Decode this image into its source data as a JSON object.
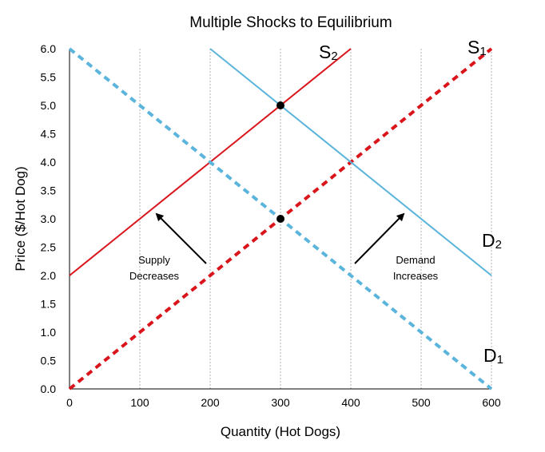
{
  "chart_data": {
    "type": "line",
    "title": "Multiple Shocks to Equilibrium",
    "xlabel": "Quantity (Hot Dogs)",
    "ylabel": "Price ($/Hot Dog)",
    "xlim": [
      0,
      600
    ],
    "ylim": [
      0,
      6
    ],
    "x_ticks": [
      "0",
      "100",
      "200",
      "300",
      "400",
      "500",
      "600"
    ],
    "y_ticks": [
      "0.0",
      "0.5",
      "1.0",
      "1.5",
      "2.0",
      "2.5",
      "3.0",
      "3.5",
      "4.0",
      "4.5",
      "5.0",
      "5.5",
      "6.0"
    ],
    "grid": "vertical dotted",
    "colors": {
      "supply": "#d9141b",
      "demand": "#5ab4dc",
      "grid": "#b3b3b3",
      "axis": "#000000"
    },
    "series": [
      {
        "label_main": "S",
        "label_sub": "1",
        "line_style": "dashed",
        "color": "supply",
        "x": [
          0,
          600
        ],
        "y": [
          0,
          6
        ]
      },
      {
        "label_main": "S",
        "label_sub": "2",
        "line_style": "solid",
        "color": "supply",
        "x": [
          0,
          400
        ],
        "y": [
          2,
          6
        ]
      },
      {
        "label_main": "D",
        "label_sub": "1",
        "line_style": "dashed",
        "color": "demand",
        "x": [
          0,
          600
        ],
        "y": [
          6,
          0
        ]
      },
      {
        "label_main": "D",
        "label_sub": "2",
        "line_style": "solid",
        "color": "demand",
        "x": [
          200,
          600
        ],
        "y": [
          6,
          2
        ]
      }
    ],
    "equilibrium_points": [
      {
        "x": 300,
        "y": 3
      },
      {
        "x": 300,
        "y": 5
      }
    ],
    "annotations": [
      {
        "lines": [
          "Supply",
          "Decreases"
        ]
      },
      {
        "lines": [
          "Demand",
          "Increases"
        ]
      }
    ]
  }
}
